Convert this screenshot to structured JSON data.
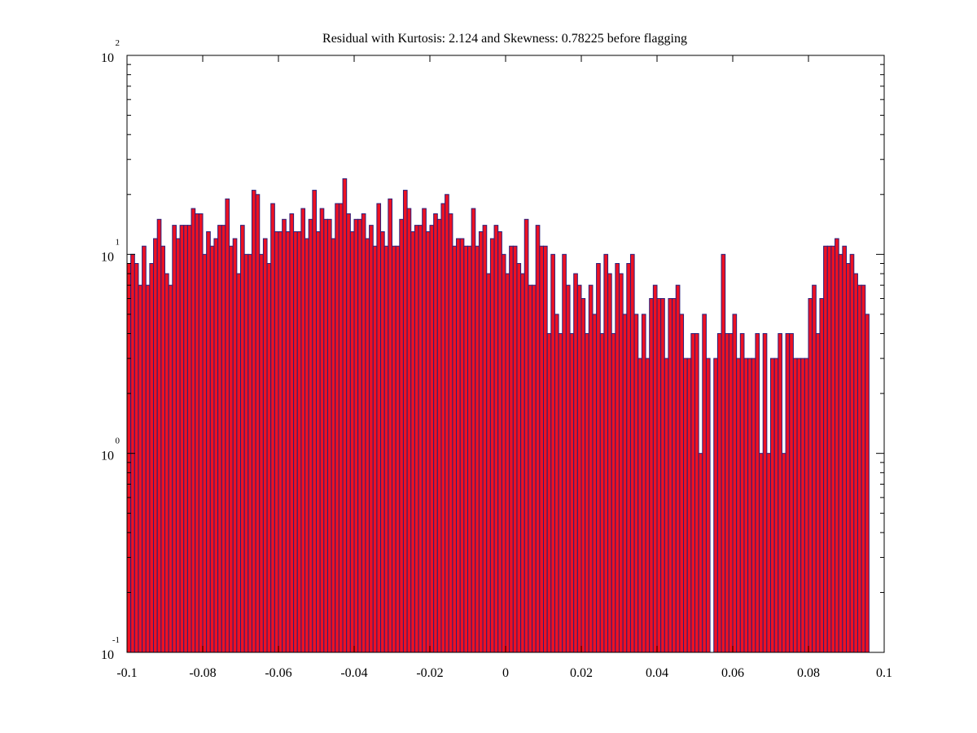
{
  "chart_data": {
    "type": "bar",
    "title": "Residual with Kurtosis: 2.124 and Skewness: 0.78225 before flagging",
    "xlabel": "",
    "ylabel": "",
    "xlim": [
      -0.1,
      0.1
    ],
    "ylim": [
      0.1,
      100
    ],
    "y_scale": "log",
    "grid": false,
    "legend": "none",
    "bar_fill": "#ee1122",
    "bar_edge": "#2a1f7a",
    "x_ticks": [
      {
        "value": -0.1,
        "label": "-0.1"
      },
      {
        "value": -0.08,
        "label": "-0.08"
      },
      {
        "value": -0.06,
        "label": "-0.06"
      },
      {
        "value": -0.04,
        "label": "-0.04"
      },
      {
        "value": -0.02,
        "label": "-0.02"
      },
      {
        "value": 0,
        "label": "0"
      },
      {
        "value": 0.02,
        "label": "0.02"
      },
      {
        "value": 0.04,
        "label": "0.04"
      },
      {
        "value": 0.06,
        "label": "0.06"
      },
      {
        "value": 0.08,
        "label": "0.08"
      },
      {
        "value": 0.1,
        "label": "0.1"
      }
    ],
    "y_ticks": [
      {
        "value": 0.1,
        "base": "10",
        "exponent": "-1"
      },
      {
        "value": 1,
        "base": "10",
        "exponent": "0"
      },
      {
        "value": 10,
        "base": "10",
        "exponent": "1"
      },
      {
        "value": 100,
        "base": "10",
        "exponent": "2"
      }
    ],
    "x_start": -0.1,
    "bin_width": 0.001,
    "values": [
      9,
      10,
      9,
      7,
      11,
      7,
      9,
      12,
      15,
      11,
      8,
      7,
      14,
      12,
      14,
      14,
      14,
      17,
      16,
      16,
      10,
      13,
      11,
      12,
      14,
      14,
      19,
      11,
      12,
      8,
      14,
      10,
      10,
      21,
      20,
      10,
      12,
      9,
      18,
      13,
      13,
      15,
      13,
      16,
      13,
      13,
      17,
      12,
      15,
      21,
      13,
      17,
      15,
      15,
      12,
      18,
      18,
      24,
      16,
      13,
      15,
      15,
      16,
      12,
      14,
      11,
      18,
      13,
      11,
      19,
      11,
      11,
      15,
      21,
      17,
      13,
      14,
      14,
      17,
      13,
      14,
      16,
      15,
      18,
      20,
      16,
      11,
      12,
      12,
      11,
      11,
      17,
      11,
      13,
      14,
      8,
      12,
      14,
      13,
      10,
      8,
      11,
      11,
      9,
      8,
      15,
      7,
      7,
      14,
      11,
      11,
      4,
      10,
      5,
      4,
      10,
      7,
      4,
      8,
      7,
      6,
      4,
      7,
      5,
      9,
      4,
      10,
      8,
      4,
      9,
      8,
      5,
      9,
      10,
      5,
      3,
      5,
      3,
      6,
      7,
      6,
      6,
      3,
      6,
      6,
      7,
      5,
      3,
      3,
      4,
      4,
      1,
      5,
      3,
      0.1,
      3,
      4,
      10,
      4,
      4,
      5,
      3,
      4,
      3,
      3,
      3,
      4,
      1,
      4,
      1,
      3,
      3,
      4,
      1,
      4,
      4,
      3,
      3,
      3,
      3,
      6,
      7,
      4,
      6,
      11,
      11,
      11,
      12,
      10,
      11,
      9,
      10,
      8,
      7,
      7,
      5
    ]
  }
}
